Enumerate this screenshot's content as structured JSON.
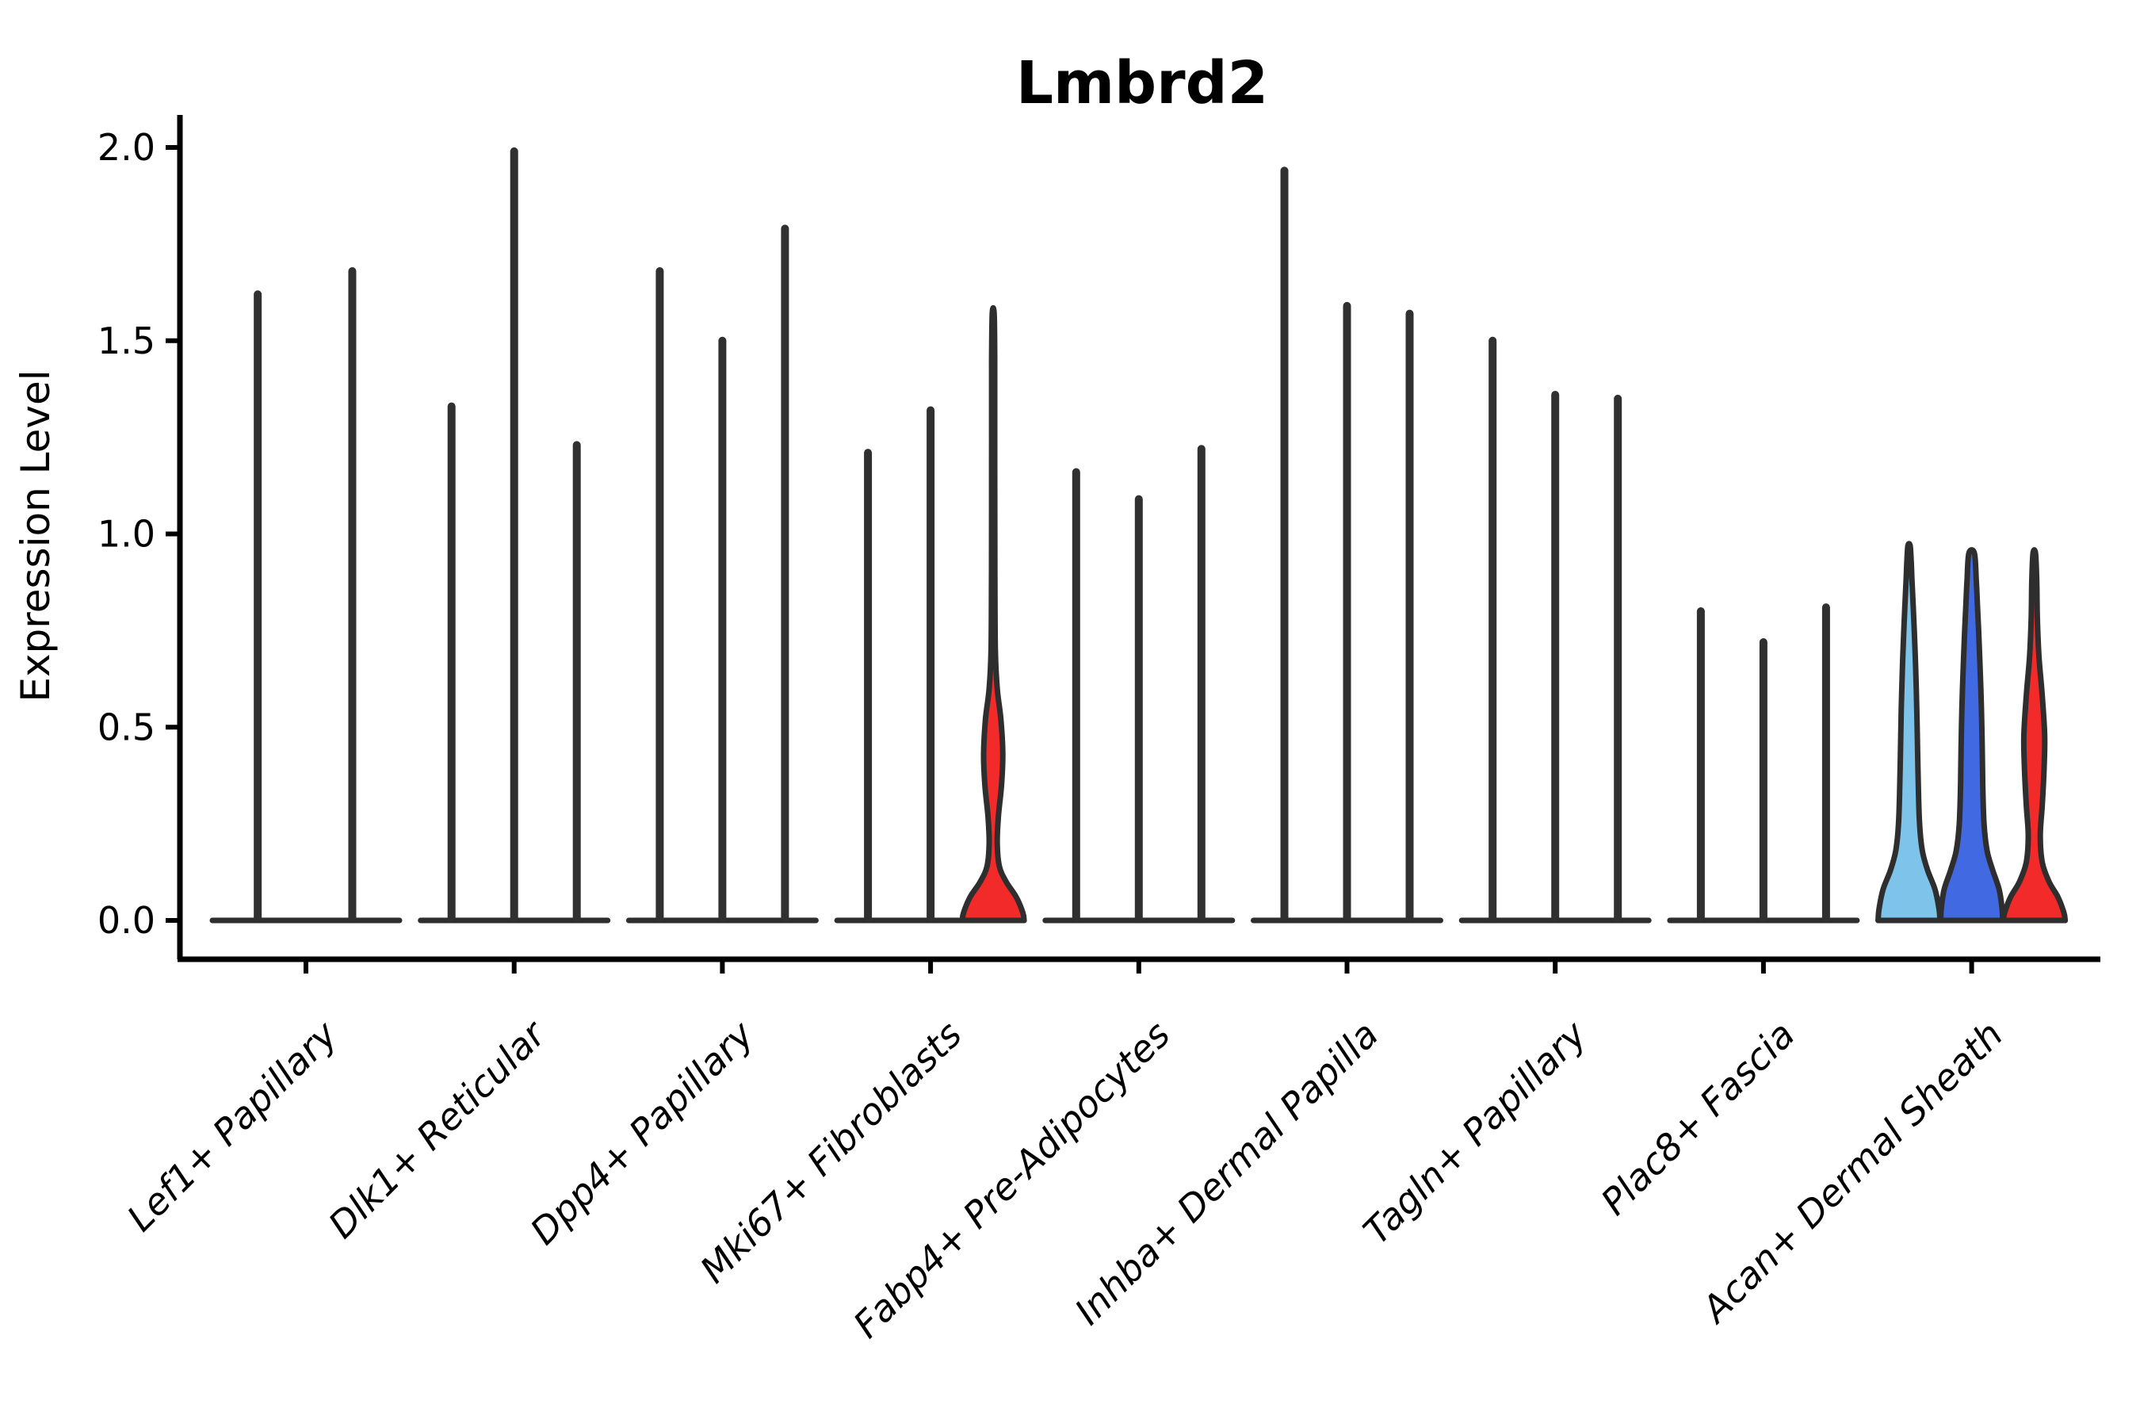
{
  "chart_data": {
    "type": "violin",
    "title": "Lmbrd2",
    "ylabel": "Expression Level",
    "xlabel": "",
    "ylim": [
      -0.1,
      2.08
    ],
    "yticks": [
      "0.0",
      "0.5",
      "1.0",
      "1.5",
      "2.0"
    ],
    "ytick_values": [
      0.0,
      0.5,
      1.0,
      1.5,
      2.0
    ],
    "grid": false,
    "legend_position": "none",
    "x_label_rotation_deg": 45,
    "categories": [
      "Lef1+ Papillary",
      "Dlk1+ Reticular",
      "Dpp4+ Papillary",
      "Mki67+ Fibroblasts",
      "Fabp4+ Pre-Adipocytes",
      "Inhba+ Dermal Papilla",
      "Tagln+ Papillary",
      "Plac8+ Fascia",
      "Acan+ Dermal Sheath"
    ],
    "colors": {
      "skyblue": "#7EC3EA",
      "royalblue": "#4169E1",
      "red": "#F22A2A",
      "spike_stroke": "#303030",
      "violin_outline": "#2E2E2E",
      "axis": "#000000"
    },
    "groups": [
      {
        "category": "Lef1+ Papillary",
        "violins": [
          {
            "max": 1.62,
            "style": "spike",
            "slot": -0.77
          },
          {
            "max": 1.68,
            "style": "spike",
            "slot": 0.74
          }
        ]
      },
      {
        "category": "Dlk1+ Reticular",
        "violins": [
          {
            "max": 1.33,
            "style": "spike",
            "slot": -1
          },
          {
            "max": 1.99,
            "style": "spike",
            "slot": 0
          },
          {
            "max": 1.23,
            "style": "spike",
            "slot": 1
          }
        ]
      },
      {
        "category": "Dpp4+ Papillary",
        "violins": [
          {
            "max": 1.68,
            "style": "spike",
            "slot": -1
          },
          {
            "max": 1.5,
            "style": "spike",
            "slot": 0
          },
          {
            "max": 1.79,
            "style": "spike",
            "slot": 1
          }
        ]
      },
      {
        "category": "Mki67+ Fibroblasts",
        "violins": [
          {
            "max": 1.21,
            "style": "spike",
            "slot": -1
          },
          {
            "max": 1.32,
            "style": "spike",
            "slot": 0
          },
          {
            "max": 1.57,
            "style": "shaped",
            "slot": 1,
            "color_key": "red",
            "profile": [
              [
                0,
                1
              ],
              [
                0.02,
                0.96
              ],
              [
                0.06,
                0.75
              ],
              [
                0.1,
                0.42
              ],
              [
                0.14,
                0.2
              ],
              [
                0.2,
                0.13
              ],
              [
                0.27,
                0.17
              ],
              [
                0.35,
                0.27
              ],
              [
                0.43,
                0.31
              ],
              [
                0.52,
                0.25
              ],
              [
                0.6,
                0.13
              ],
              [
                0.7,
                0.07
              ],
              [
                0.9,
                0.055
              ],
              [
                1.2,
                0.05
              ],
              [
                1.45,
                0.05
              ],
              [
                1.57,
                0.03
              ]
            ]
          }
        ]
      },
      {
        "category": "Fabp4+ Pre-Adipocytes",
        "violins": [
          {
            "max": 1.16,
            "style": "spike",
            "slot": -1
          },
          {
            "max": 1.09,
            "style": "spike",
            "slot": 0
          },
          {
            "max": 1.22,
            "style": "spike",
            "slot": 1
          }
        ]
      },
      {
        "category": "Inhba+ Dermal Papilla",
        "violins": [
          {
            "max": 1.94,
            "style": "spike",
            "slot": -1
          },
          {
            "max": 1.59,
            "style": "spike",
            "slot": 0
          },
          {
            "max": 1.57,
            "style": "spike",
            "slot": 1
          }
        ]
      },
      {
        "category": "Tagln+ Papillary",
        "violins": [
          {
            "max": 1.5,
            "style": "spike",
            "slot": -1
          },
          {
            "max": 1.36,
            "style": "spike",
            "slot": 0
          },
          {
            "max": 1.35,
            "style": "spike",
            "slot": 1
          }
        ]
      },
      {
        "category": "Plac8+ Fascia",
        "violins": [
          {
            "max": 0.8,
            "style": "spike",
            "slot": -1
          },
          {
            "max": 0.72,
            "style": "spike",
            "slot": 0
          },
          {
            "max": 0.81,
            "style": "spike",
            "slot": 1
          }
        ]
      },
      {
        "category": "Acan+ Dermal Sheath",
        "violins": [
          {
            "max": 0.97,
            "style": "shaped",
            "slot": -1,
            "color_key": "skyblue",
            "profile": [
              [
                0,
                1
              ],
              [
                0.03,
                0.97
              ],
              [
                0.08,
                0.84
              ],
              [
                0.13,
                0.6
              ],
              [
                0.18,
                0.43
              ],
              [
                0.25,
                0.34
              ],
              [
                0.35,
                0.3
              ],
              [
                0.45,
                0.275
              ],
              [
                0.55,
                0.25
              ],
              [
                0.65,
                0.215
              ],
              [
                0.75,
                0.17
              ],
              [
                0.82,
                0.13
              ],
              [
                0.88,
                0.095
              ],
              [
                0.93,
                0.07
              ],
              [
                0.97,
                0.035
              ]
            ]
          },
          {
            "max": 0.95,
            "style": "shaped",
            "slot": 0,
            "color_key": "royalblue",
            "profile": [
              [
                0,
                1
              ],
              [
                0.03,
                0.985
              ],
              [
                0.08,
                0.89
              ],
              [
                0.13,
                0.68
              ],
              [
                0.18,
                0.5
              ],
              [
                0.25,
                0.4
              ],
              [
                0.35,
                0.36
              ],
              [
                0.45,
                0.34
              ],
              [
                0.55,
                0.315
              ],
              [
                0.65,
                0.275
              ],
              [
                0.75,
                0.225
              ],
              [
                0.82,
                0.185
              ],
              [
                0.88,
                0.15
              ],
              [
                0.95,
                0.09
              ]
            ]
          },
          {
            "max": 0.95,
            "style": "shaped",
            "slot": 1,
            "color_key": "red",
            "profile": [
              [
                0,
                1
              ],
              [
                0.02,
                0.96
              ],
              [
                0.06,
                0.77
              ],
              [
                0.1,
                0.48
              ],
              [
                0.15,
                0.26
              ],
              [
                0.22,
                0.195
              ],
              [
                0.3,
                0.26
              ],
              [
                0.4,
                0.32
              ],
              [
                0.48,
                0.335
              ],
              [
                0.58,
                0.26
              ],
              [
                0.68,
                0.155
              ],
              [
                0.78,
                0.1
              ],
              [
                0.88,
                0.08
              ],
              [
                0.95,
                0.04
              ]
            ]
          }
        ]
      }
    ]
  }
}
